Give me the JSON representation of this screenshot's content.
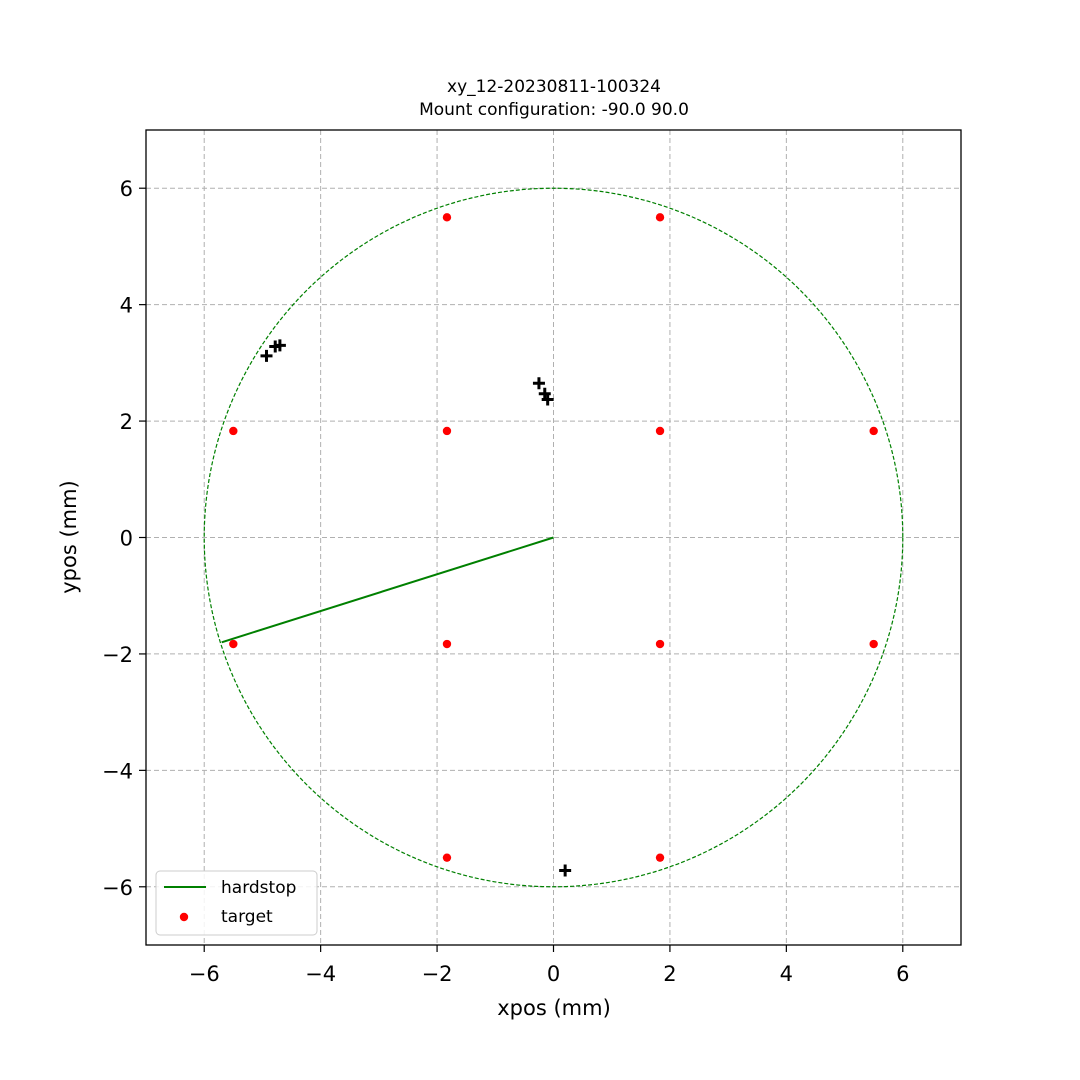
{
  "chart_data": {
    "type": "scatter",
    "title": "xy_12-20230811-100324",
    "subtitle": "Mount configuration: -90.0 90.0",
    "xlabel": "xpos (mm)",
    "ylabel": "ypos (mm)",
    "xlim": [
      -7,
      7
    ],
    "ylim": [
      -7,
      7
    ],
    "xticks": [
      -6,
      -4,
      -2,
      0,
      2,
      4,
      6
    ],
    "yticks": [
      -6,
      -4,
      -2,
      0,
      2,
      4,
      6
    ],
    "xtick_labels": [
      "−6",
      "−4",
      "−2",
      "0",
      "2",
      "4",
      "6"
    ],
    "ytick_labels": [
      "−6",
      "−4",
      "−2",
      "0",
      "2",
      "4",
      "6"
    ],
    "grid": true,
    "legend_position": "lower-left",
    "boundary_circle": {
      "radius": 6,
      "center": [
        0,
        0
      ],
      "color": "#008000",
      "style": "dashed"
    },
    "series": [
      {
        "name": "hardstop",
        "kind": "line",
        "color": "#008000",
        "x": [
          0,
          -5.7
        ],
        "y": [
          0,
          -1.8
        ]
      },
      {
        "name": "target",
        "kind": "scatter",
        "color": "#ff0000",
        "x": [
          -1.83,
          1.83,
          -5.5,
          -1.83,
          1.83,
          5.5,
          -5.5,
          -1.83,
          1.83,
          5.5,
          -1.83,
          1.83
        ],
        "y": [
          5.5,
          5.5,
          1.83,
          1.83,
          1.83,
          1.83,
          -1.83,
          -1.83,
          -1.83,
          -1.83,
          -5.5,
          -5.5
        ]
      },
      {
        "kind": "plus",
        "color": "#000000",
        "x": [
          -4.93,
          -4.78,
          -4.7,
          -0.25,
          -0.15,
          -0.1,
          0.2
        ],
        "y": [
          3.12,
          3.28,
          3.3,
          2.65,
          2.47,
          2.37,
          -5.72
        ]
      }
    ]
  }
}
